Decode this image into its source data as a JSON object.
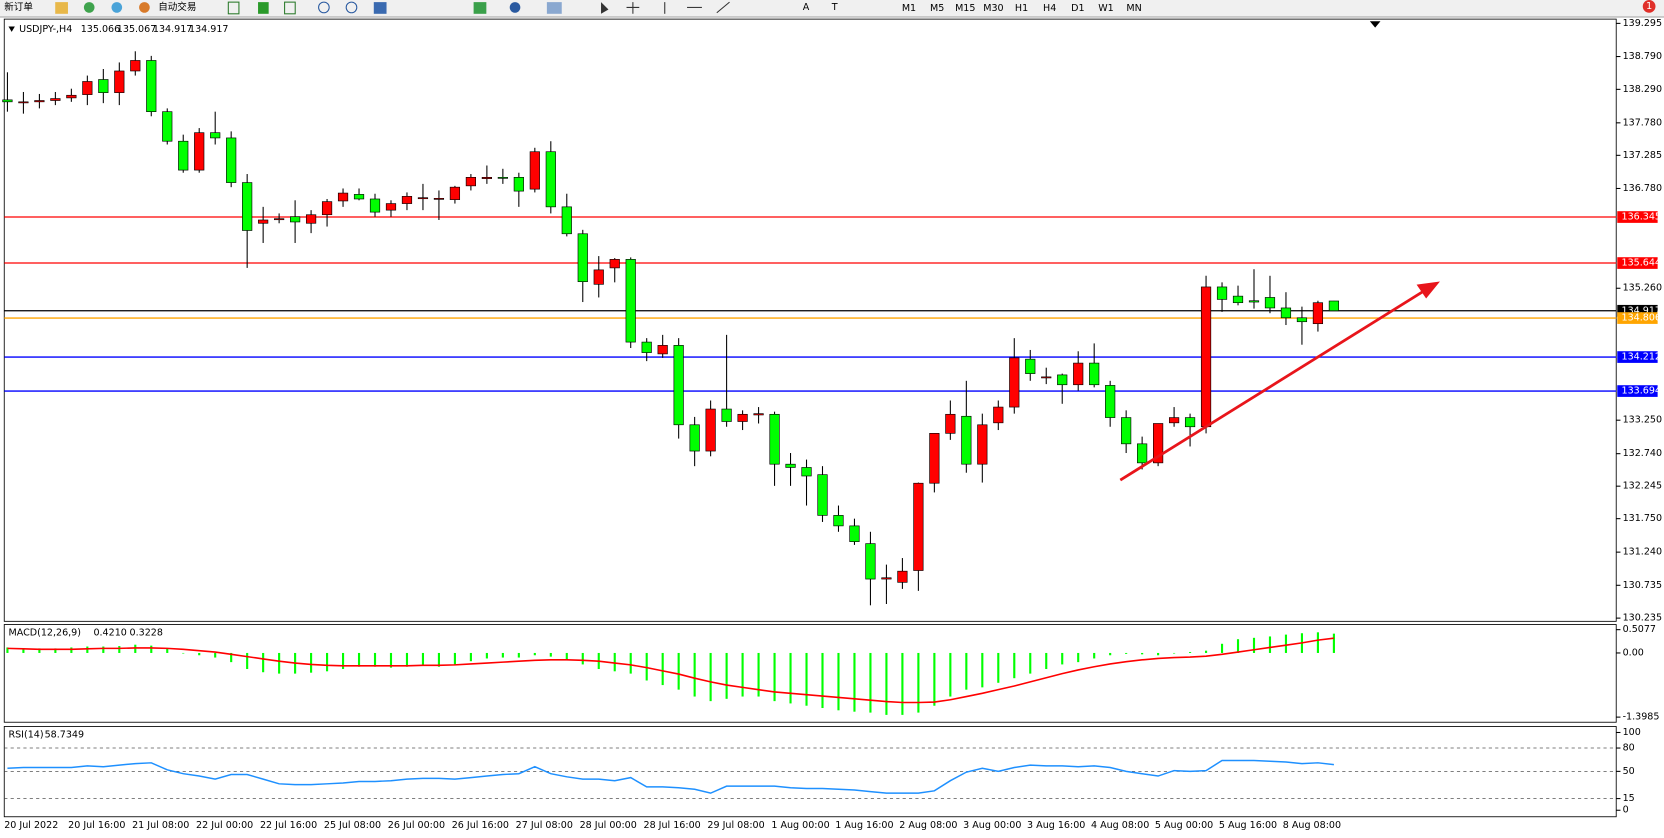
{
  "toolbar": {
    "new_order": "新订单",
    "auto_trading": "自动交易",
    "tools": [
      "A",
      "T"
    ],
    "timeframes": [
      "M1",
      "M5",
      "M15",
      "M30",
      "H1",
      "H4",
      "D1",
      "W1",
      "MN"
    ],
    "badge": 1
  },
  "chart_data": [
    {
      "type": "candlestick",
      "title": "USDJPY-,H4",
      "up_color": "#ff0000",
      "down_color": "#00ff00",
      "categories": [
        "20 Jul 2022",
        null,
        null,
        null,
        "20 Jul 16:00",
        null,
        null,
        null,
        "21 Jul 08:00",
        null,
        null,
        null,
        "22 Jul 00:00",
        null,
        null,
        null,
        "22 Jul 16:00",
        null,
        null,
        null,
        "25 Jul 08:00",
        null,
        null,
        null,
        "26 Jul 00:00",
        null,
        null,
        null,
        "26 Jul 16:00",
        null,
        null,
        null,
        "27 Jul 08:00",
        null,
        null,
        null,
        "28 Jul 00:00",
        null,
        null,
        null,
        "28 Jul 16:00",
        null,
        null,
        null,
        "29 Jul 08:00",
        null,
        null,
        null,
        "1 Aug 00:00",
        null,
        null,
        null,
        "1 Aug 16:00",
        null,
        null,
        null,
        "2 Aug 08:00",
        null,
        null,
        null,
        "3 Aug 00:00",
        null,
        null,
        null,
        "3 Aug 16:00",
        null,
        null,
        null,
        "4 Aug 08:00",
        null,
        null,
        null,
        "5 Aug 00:00",
        null,
        null,
        null,
        "5 Aug 16:00",
        null,
        null,
        null,
        "8 Aug 08:00",
        null,
        null,
        null
      ],
      "ohlc": [
        [
          138.13,
          138.55,
          137.95,
          138.1
        ],
        [
          138.1,
          138.25,
          137.92,
          138.1
        ],
        [
          138.1,
          138.22,
          138.0,
          138.12
        ],
        [
          138.12,
          138.25,
          138.05,
          138.15
        ],
        [
          138.16,
          138.3,
          138.1,
          138.2
        ],
        [
          138.21,
          138.5,
          138.05,
          138.41
        ],
        [
          138.44,
          138.6,
          138.08,
          138.24
        ],
        [
          138.24,
          138.7,
          138.05,
          138.57
        ],
        [
          138.57,
          138.87,
          138.5,
          138.73
        ],
        [
          138.73,
          138.8,
          137.88,
          137.95
        ],
        [
          137.95,
          138.0,
          137.45,
          137.5
        ],
        [
          137.5,
          137.6,
          137.02,
          137.06
        ],
        [
          137.06,
          137.7,
          137.02,
          137.63
        ],
        [
          137.63,
          137.95,
          137.45,
          137.55
        ],
        [
          137.55,
          137.65,
          136.8,
          136.87
        ],
        [
          136.87,
          137.0,
          135.57,
          136.14
        ],
        [
          136.25,
          136.5,
          135.95,
          136.3
        ],
        [
          136.31,
          136.4,
          136.25,
          136.32
        ],
        [
          136.35,
          136.6,
          135.95,
          136.27
        ],
        [
          136.25,
          136.45,
          136.1,
          136.38
        ],
        [
          136.38,
          136.62,
          136.2,
          136.58
        ],
        [
          136.59,
          136.78,
          136.5,
          136.71
        ],
        [
          136.69,
          136.78,
          136.6,
          136.62
        ],
        [
          136.62,
          136.7,
          136.35,
          136.42
        ],
        [
          136.45,
          136.6,
          136.35,
          136.55
        ],
        [
          136.55,
          136.72,
          136.45,
          136.66
        ],
        [
          136.64,
          136.85,
          136.45,
          136.64
        ],
        [
          136.62,
          136.75,
          136.3,
          136.63
        ],
        [
          136.61,
          136.82,
          136.55,
          136.8
        ],
        [
          136.82,
          137.0,
          136.75,
          136.95
        ],
        [
          136.93,
          137.13,
          136.85,
          136.95
        ],
        [
          136.95,
          137.08,
          136.85,
          136.94
        ],
        [
          136.95,
          137.02,
          136.5,
          136.74
        ],
        [
          136.77,
          137.4,
          136.72,
          137.34
        ],
        [
          137.34,
          137.5,
          136.4,
          136.5
        ],
        [
          136.5,
          136.7,
          136.05,
          136.09
        ],
        [
          136.09,
          136.15,
          135.05,
          135.36
        ],
        [
          135.32,
          135.75,
          135.12,
          135.54
        ],
        [
          135.57,
          135.72,
          135.35,
          135.7
        ],
        [
          135.7,
          135.73,
          134.35,
          134.44
        ],
        [
          134.44,
          134.5,
          134.15,
          134.28
        ],
        [
          134.26,
          134.55,
          134.2,
          134.39
        ],
        [
          134.39,
          134.5,
          132.97,
          133.18
        ],
        [
          133.18,
          133.3,
          132.55,
          132.78
        ],
        [
          132.78,
          133.55,
          132.7,
          133.42
        ],
        [
          133.42,
          134.55,
          133.15,
          133.23
        ],
        [
          133.23,
          133.4,
          133.1,
          133.34
        ],
        [
          133.33,
          133.45,
          133.2,
          133.35
        ],
        [
          133.34,
          133.38,
          132.25,
          132.58
        ],
        [
          132.58,
          132.75,
          132.25,
          132.53
        ],
        [
          132.53,
          132.65,
          131.95,
          132.4
        ],
        [
          132.42,
          132.55,
          131.7,
          131.8
        ],
        [
          131.8,
          131.95,
          131.55,
          131.64
        ],
        [
          131.64,
          131.75,
          131.35,
          131.4
        ],
        [
          131.37,
          131.55,
          130.43,
          130.83
        ],
        [
          130.83,
          131.05,
          130.45,
          130.85
        ],
        [
          130.78,
          131.15,
          130.68,
          130.95
        ],
        [
          130.96,
          132.3,
          130.65,
          132.29
        ],
        [
          132.29,
          133.05,
          132.15,
          133.05
        ],
        [
          133.05,
          133.55,
          132.95,
          133.34
        ],
        [
          133.31,
          133.85,
          132.45,
          132.58
        ],
        [
          132.58,
          133.35,
          132.3,
          133.18
        ],
        [
          133.21,
          133.55,
          133.1,
          133.45
        ],
        [
          133.45,
          134.5,
          133.35,
          134.2
        ],
        [
          134.18,
          134.32,
          133.85,
          133.96
        ],
        [
          133.91,
          134.05,
          133.8,
          133.91
        ],
        [
          133.94,
          133.96,
          133.5,
          133.79
        ],
        [
          133.79,
          134.3,
          133.7,
          134.12
        ],
        [
          134.12,
          134.42,
          133.75,
          133.79
        ],
        [
          133.78,
          133.85,
          133.15,
          133.29
        ],
        [
          133.29,
          133.4,
          132.75,
          132.89
        ],
        [
          132.89,
          133.0,
          132.5,
          132.6
        ],
        [
          132.6,
          133.2,
          132.55,
          133.2
        ],
        [
          133.21,
          133.45,
          133.15,
          133.29
        ],
        [
          133.29,
          133.35,
          132.85,
          133.15
        ],
        [
          133.15,
          135.45,
          133.05,
          135.28
        ],
        [
          135.28,
          135.35,
          134.9,
          135.09
        ],
        [
          135.14,
          135.3,
          135.0,
          135.04
        ],
        [
          135.07,
          135.55,
          134.95,
          135.05
        ],
        [
          135.12,
          135.45,
          134.88,
          134.96
        ],
        [
          134.96,
          135.2,
          134.7,
          134.81
        ],
        [
          134.81,
          134.98,
          134.4,
          134.75
        ],
        [
          134.72,
          135.07,
          134.6,
          135.04
        ],
        [
          135.066,
          135.067,
          134.917,
          134.917
        ]
      ],
      "ylim": [
        130.186,
        139.36
      ],
      "yticks": [
        139.295,
        {
          "value": 138.79,
          "label": "138.790"
        },
        {
          "value": 138.29,
          "label": "138.290"
        },
        {
          "value": 137.78,
          "label": "137.780"
        },
        137.285,
        {
          "value": 136.78,
          "label": "136.780"
        },
        {
          "value": 135.26,
          "label": "135.260"
        },
        {
          "value": 133.25,
          "label": "133.250"
        },
        {
          "value": 132.74,
          "label": "132.740"
        },
        132.245,
        {
          "value": 131.75,
          "label": "131.750"
        },
        {
          "value": 131.24,
          "label": "131.240"
        },
        130.735,
        130.235
      ],
      "levels": [
        {
          "value": 136.345,
          "color": "#ff0000"
        },
        {
          "value": 135.644,
          "color": "#ff0000"
        },
        {
          "value": 134.917,
          "color": "#000000"
        },
        {
          "value": 134.806,
          "color": "#ffa500"
        },
        {
          "value": 134.212,
          "color": "#0000ff"
        },
        {
          "value": 133.694,
          "color": "#0000ff"
        }
      ]
    },
    {
      "type": "macd",
      "title": "MACD(12,26,9)",
      "readout": [
        "0.4210",
        "0.3228"
      ],
      "histogram": {
        "color": "#00ff00",
        "values": [
          0.12,
          0.1,
          0.1,
          0.1,
          0.12,
          0.14,
          0.14,
          0.15,
          0.18,
          0.16,
          0.1,
          0.0,
          -0.05,
          -0.1,
          -0.2,
          -0.35,
          -0.42,
          -0.45,
          -0.45,
          -0.43,
          -0.4,
          -0.35,
          -0.3,
          -0.3,
          -0.32,
          -0.3,
          -0.28,
          -0.3,
          -0.25,
          -0.18,
          -0.12,
          -0.1,
          -0.1,
          -0.05,
          -0.08,
          -0.15,
          -0.25,
          -0.35,
          -0.4,
          -0.45,
          -0.6,
          -0.7,
          -0.8,
          -0.95,
          -1.05,
          -1.0,
          -0.95,
          -0.95,
          -1.05,
          -1.1,
          -1.15,
          -1.2,
          -1.25,
          -1.28,
          -1.3,
          -1.35,
          -1.35,
          -1.3,
          -1.15,
          -0.95,
          -0.8,
          -0.75,
          -0.65,
          -0.55,
          -0.45,
          -0.35,
          -0.25,
          -0.2,
          -0.12,
          -0.05,
          -0.02,
          -0.03,
          -0.05,
          0.0,
          0.02,
          0.05,
          0.2,
          0.3,
          0.33,
          0.36,
          0.4,
          0.43,
          0.45,
          0.421
        ]
      },
      "signal": {
        "color": "#ff0000",
        "values": [
          0.1,
          0.09,
          0.08,
          0.08,
          0.08,
          0.09,
          0.1,
          0.1,
          0.11,
          0.11,
          0.1,
          0.08,
          0.05,
          0.02,
          -0.03,
          -0.08,
          -0.13,
          -0.18,
          -0.22,
          -0.25,
          -0.27,
          -0.28,
          -0.28,
          -0.28,
          -0.28,
          -0.28,
          -0.27,
          -0.27,
          -0.26,
          -0.24,
          -0.22,
          -0.2,
          -0.18,
          -0.16,
          -0.15,
          -0.15,
          -0.16,
          -0.18,
          -0.22,
          -0.26,
          -0.32,
          -0.39,
          -0.46,
          -0.55,
          -0.63,
          -0.7,
          -0.75,
          -0.8,
          -0.85,
          -0.88,
          -0.91,
          -0.94,
          -0.97,
          -1.0,
          -1.03,
          -1.06,
          -1.08,
          -1.08,
          -1.07,
          -1.02,
          -0.95,
          -0.88,
          -0.8,
          -0.72,
          -0.63,
          -0.54,
          -0.45,
          -0.37,
          -0.3,
          -0.24,
          -0.19,
          -0.15,
          -0.12,
          -0.1,
          -0.09,
          -0.07,
          -0.03,
          0.02,
          0.07,
          0.12,
          0.17,
          0.22,
          0.28,
          0.3228
        ]
      },
      "ylim": [
        -1.51,
        0.62
      ],
      "yticks": [
        0.5077,
        {
          "value": 0,
          "label": "0.00"
        },
        -1.3985
      ]
    },
    {
      "type": "rsi",
      "title": "RSI(14)",
      "color": "#1e90ff",
      "values": [
        54,
        55,
        55,
        55,
        55,
        57,
        56,
        58,
        60,
        61,
        52,
        47,
        44,
        40,
        46,
        46,
        40,
        34,
        33,
        33,
        34,
        35,
        37,
        37,
        38,
        40,
        41,
        41,
        40,
        42,
        44,
        46,
        47,
        56,
        47,
        43,
        40,
        40,
        38,
        42,
        30,
        30,
        29,
        27,
        22,
        31,
        31,
        31,
        31,
        29,
        28,
        28,
        27,
        26,
        24,
        22,
        22,
        22,
        25,
        38,
        49,
        54,
        50,
        55,
        58,
        57,
        57,
        56,
        57,
        55,
        50,
        47,
        44,
        51,
        50,
        51,
        64,
        64,
        64,
        63,
        62,
        60,
        61,
        58.7349
      ],
      "ylim": [
        -7,
        105
      ],
      "yticks": [
        100,
        80,
        50,
        15,
        0
      ],
      "levels": [
        80,
        50,
        15
      ]
    }
  ]
}
